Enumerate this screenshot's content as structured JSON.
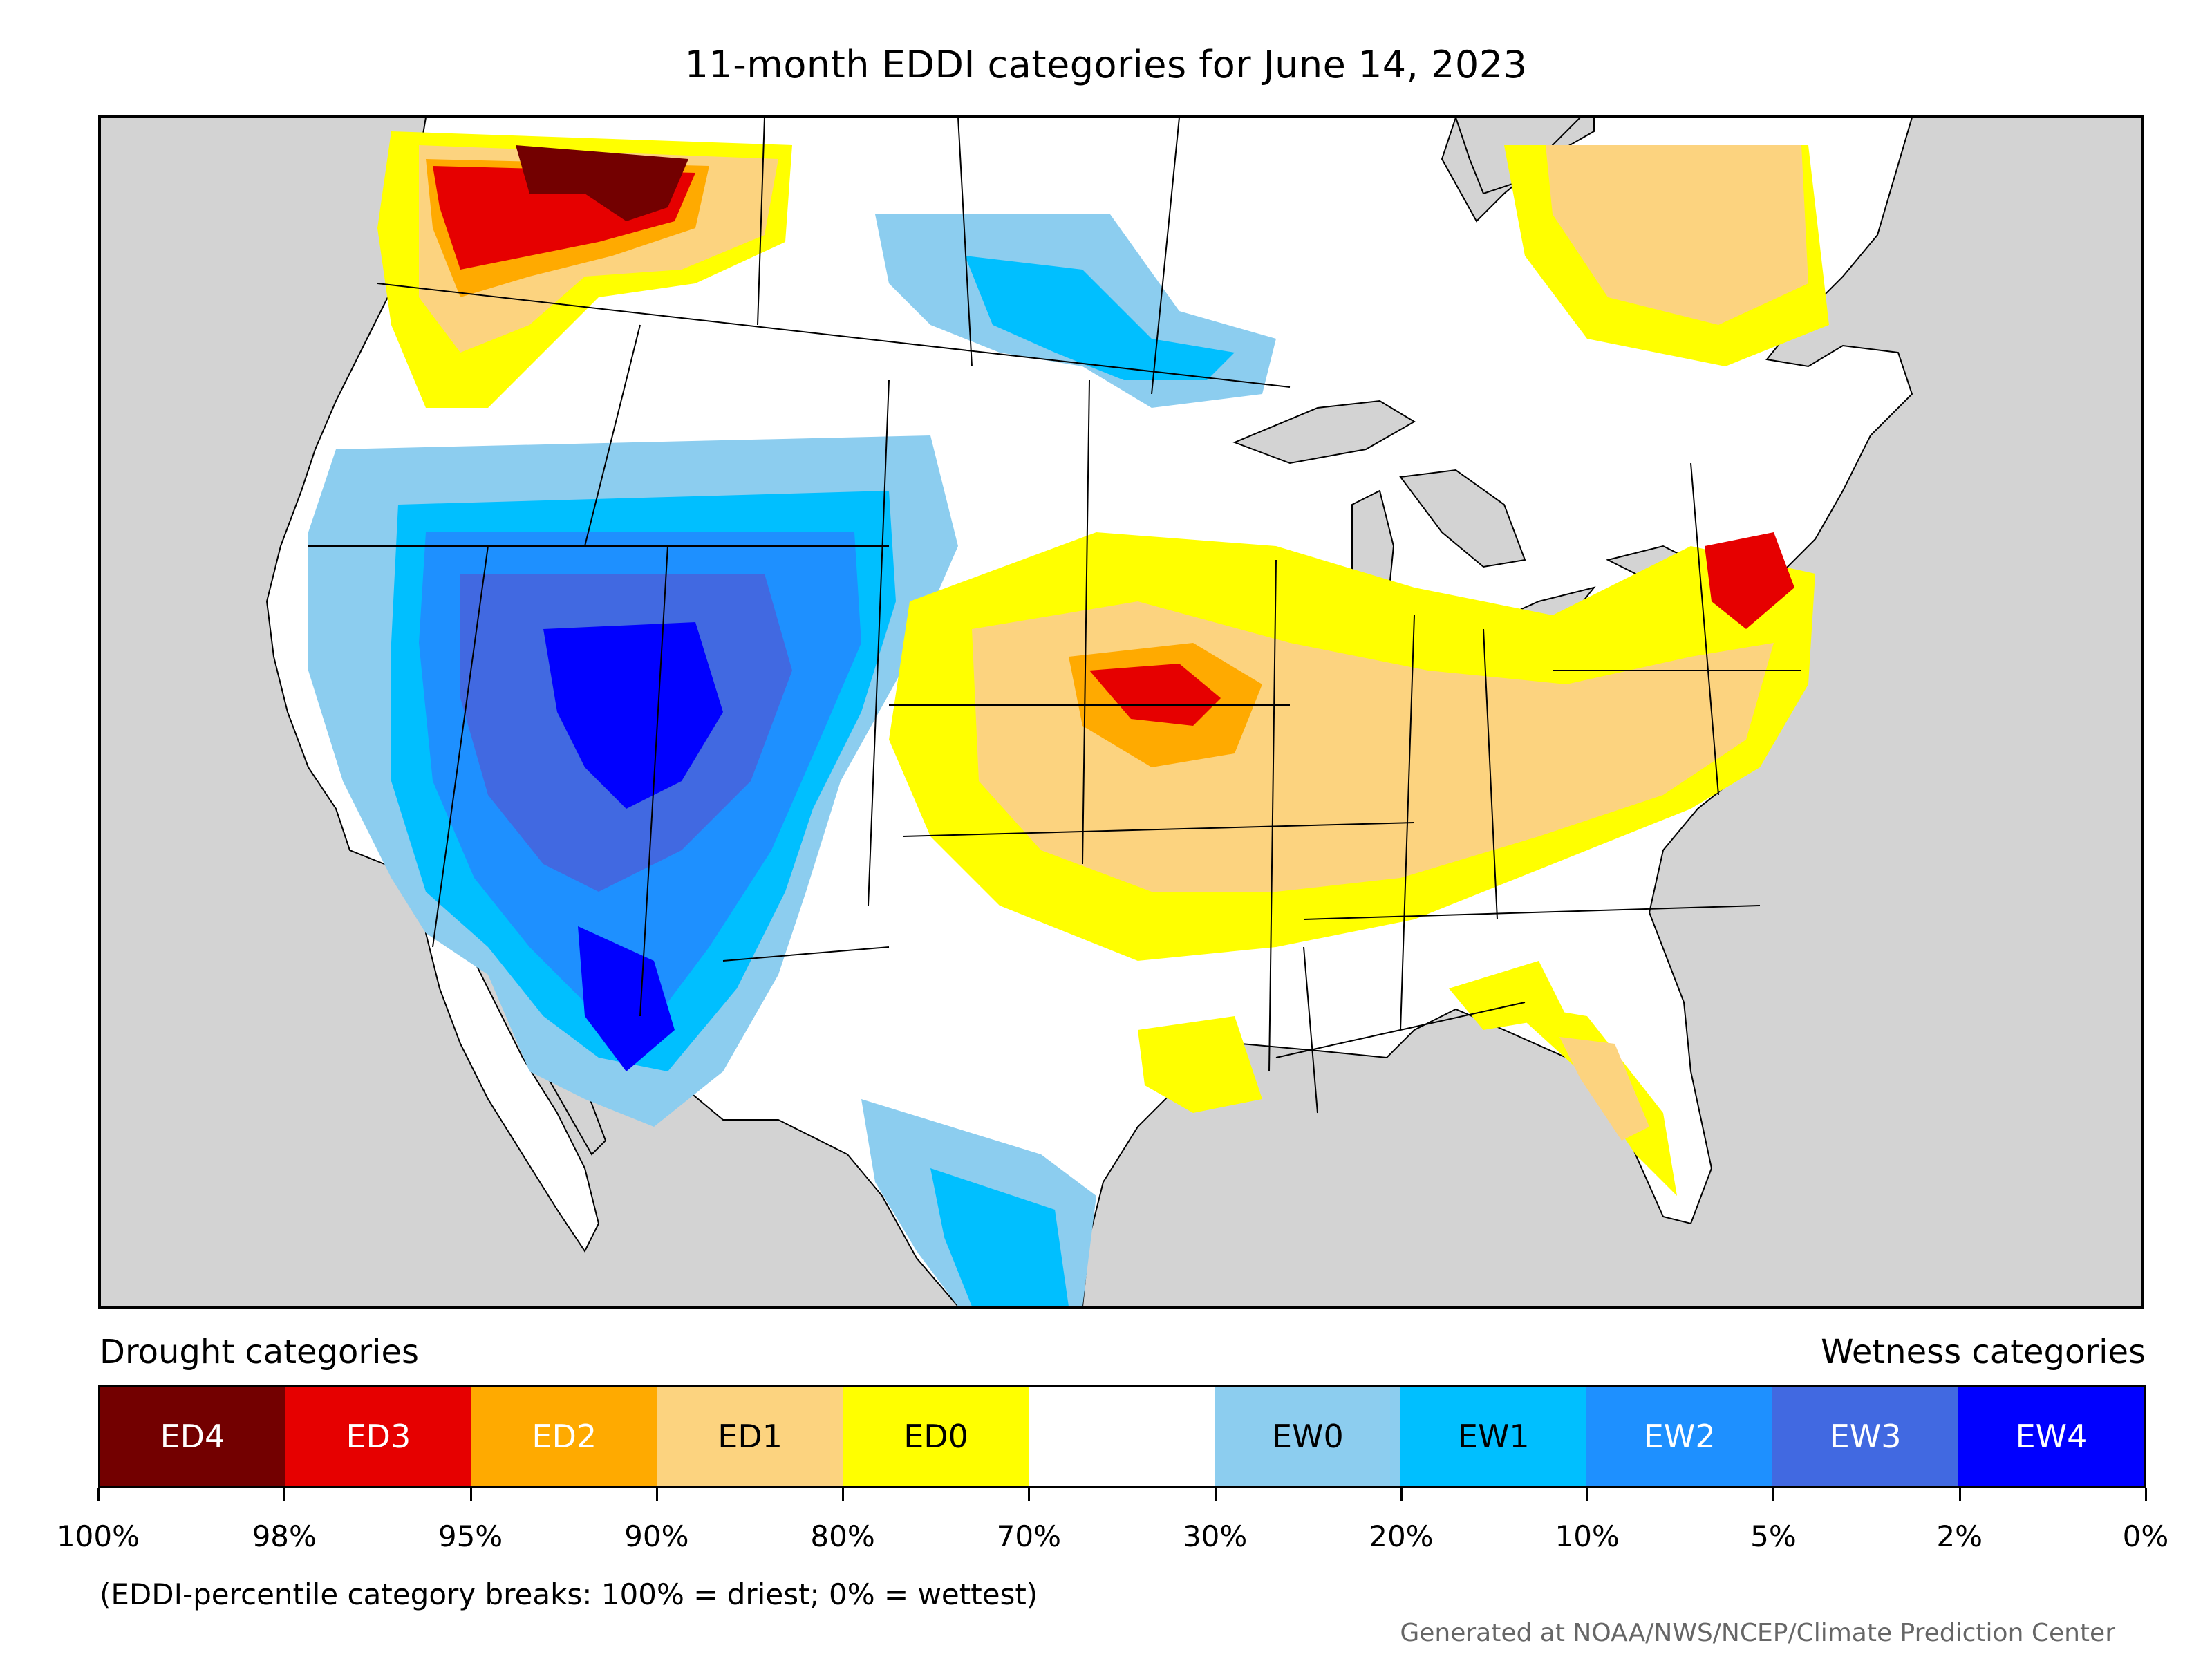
{
  "map": {
    "title": "11-month EDDI categories for June 14, 2023",
    "region_type": "contiguous-united-states",
    "background_color": "#d3d3d3",
    "land_color": "#ffffff"
  },
  "legend": {
    "drought_label": "Drought categories",
    "wetness_label": "Wetness categories",
    "categories": [
      {
        "label": "ED4",
        "color": "#730000",
        "text_color": "#ffffff"
      },
      {
        "label": "ED3",
        "color": "#e60000",
        "text_color": "#ffffff"
      },
      {
        "label": "ED2",
        "color": "#ffaa00",
        "text_color": "#ffffff"
      },
      {
        "label": "ED1",
        "color": "#fcd37f",
        "text_color": "#000000"
      },
      {
        "label": "ED0",
        "color": "#ffff00",
        "text_color": "#000000"
      },
      {
        "label": "",
        "color": "#ffffff",
        "text_color": "#000000"
      },
      {
        "label": "EW0",
        "color": "#8ccdef",
        "text_color": "#000000"
      },
      {
        "label": "EW1",
        "color": "#00bfff",
        "text_color": "#000000"
      },
      {
        "label": "EW2",
        "color": "#1e90ff",
        "text_color": "#ffffff"
      },
      {
        "label": "EW3",
        "color": "#4169e1",
        "text_color": "#ffffff"
      },
      {
        "label": "EW4",
        "color": "#0000ff",
        "text_color": "#ffffff"
      }
    ],
    "ticks": [
      "100%",
      "98%",
      "95%",
      "90%",
      "80%",
      "70%",
      "30%",
      "20%",
      "10%",
      "5%",
      "2%",
      "0%"
    ],
    "note": "(EDDI-percentile category breaks: 100% = driest; 0% = wettest)"
  },
  "credit": "Generated at NOAA/NWS/NCEP/Climate Prediction Center"
}
